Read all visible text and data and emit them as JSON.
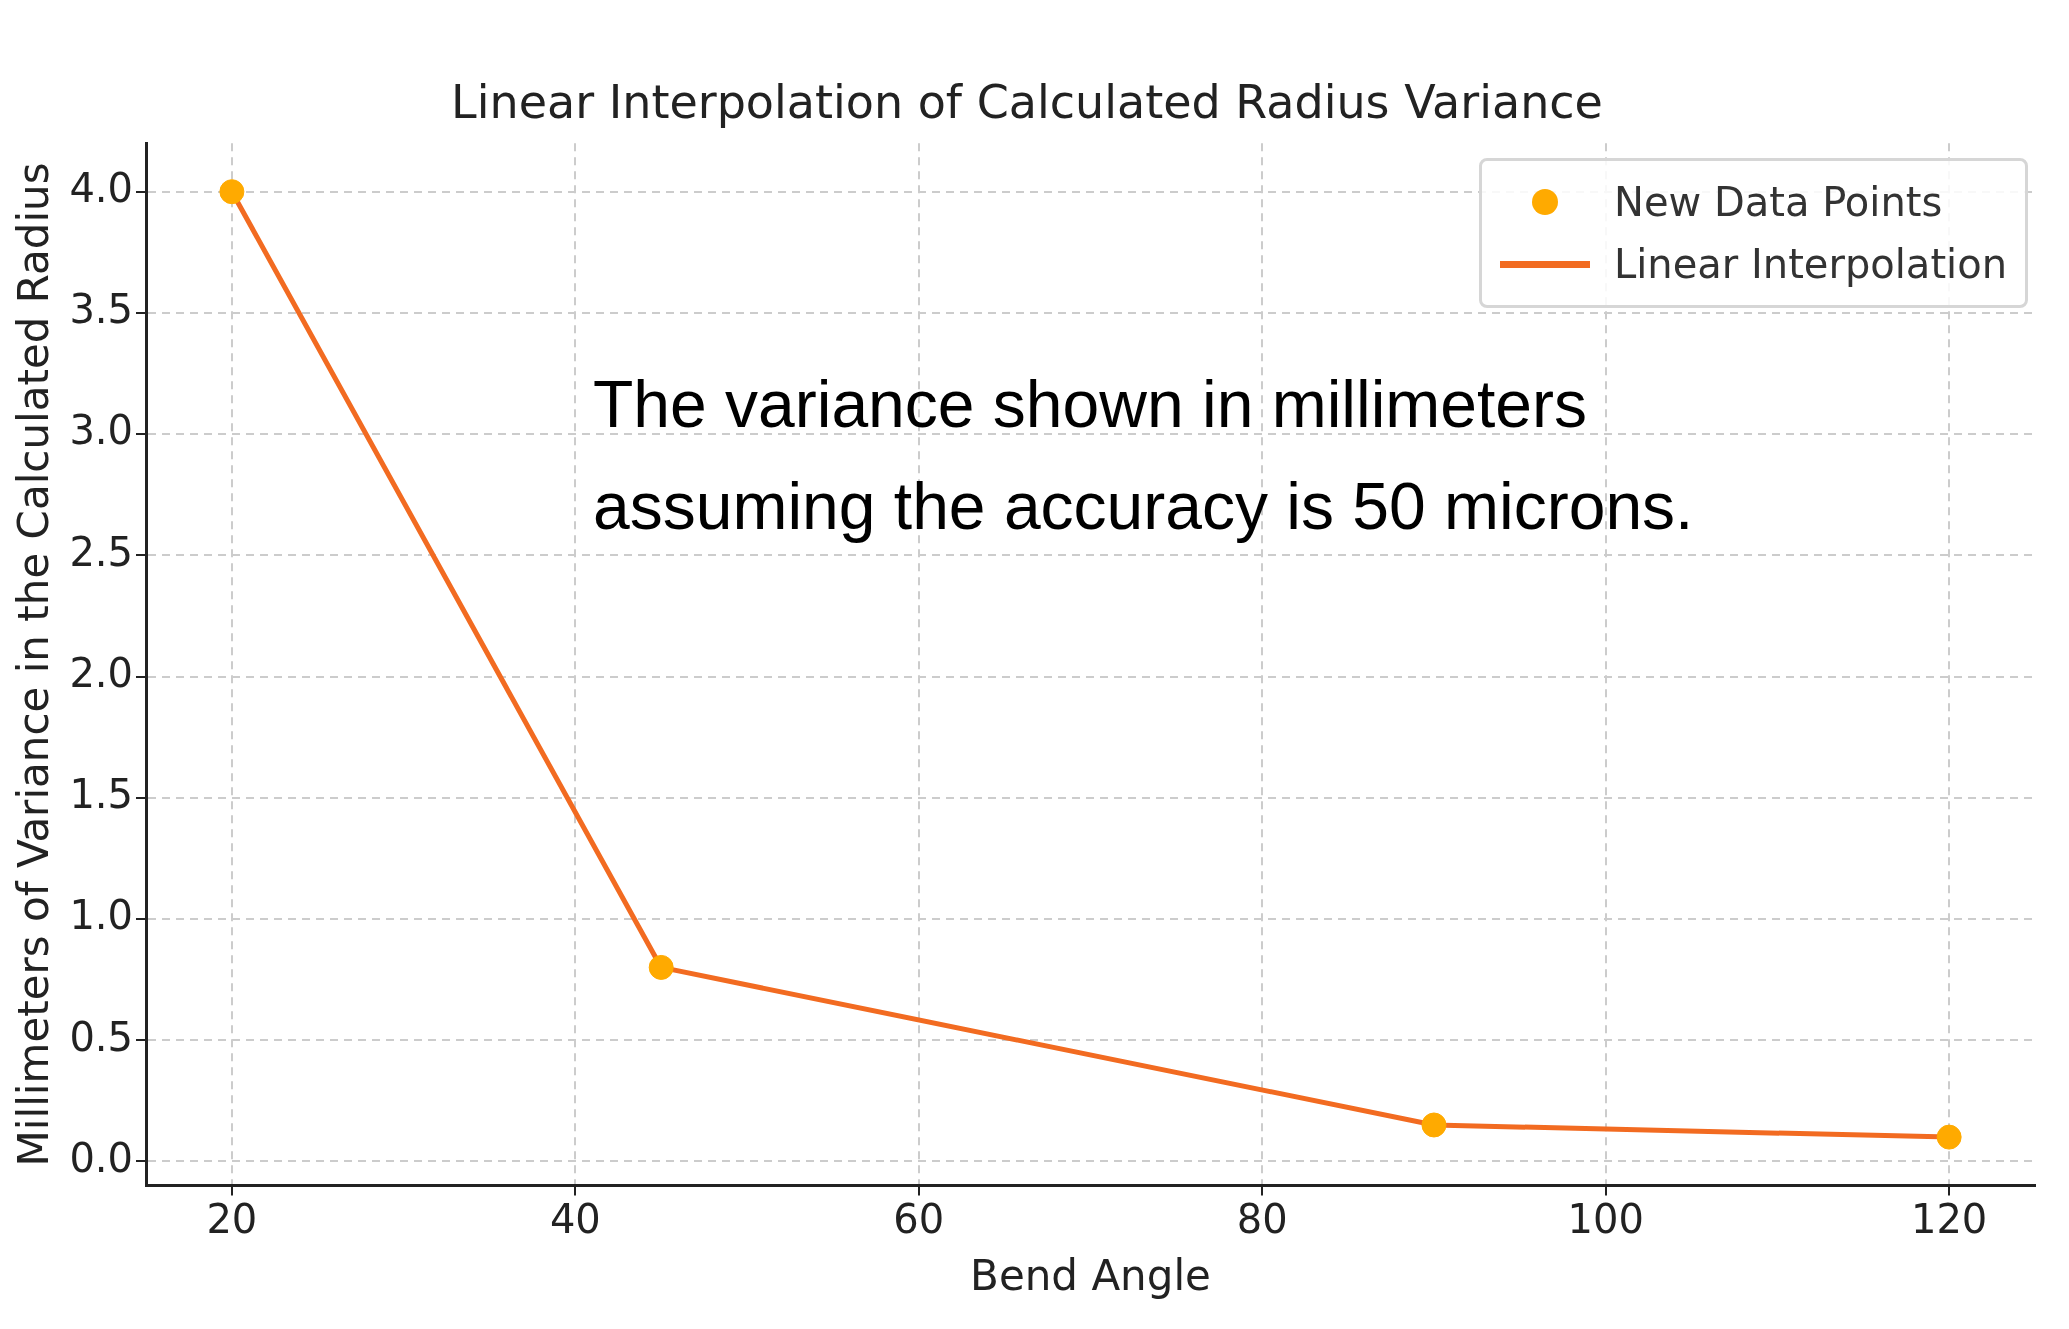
{
  "chart_data": {
    "type": "line",
    "title": "Linear Interpolation of Calculated Radius Variance",
    "xlabel": "Bend Angle",
    "ylabel": "Millimeters of Variance in the Calculated Radius",
    "x": [
      20,
      45,
      90,
      120
    ],
    "series": [
      {
        "name": "New Data Points",
        "type": "scatter",
        "color": "#ffaa00",
        "values": [
          4.0,
          0.8,
          0.15,
          0.1
        ]
      },
      {
        "name": "Linear Interpolation",
        "type": "line",
        "color": "#f26b21",
        "values": [
          4.0,
          0.8,
          0.15,
          0.1
        ]
      }
    ],
    "xlim": [
      15,
      125
    ],
    "xticks": [
      20,
      40,
      60,
      80,
      100,
      120
    ],
    "ylim": [
      -0.1,
      4.2
    ],
    "yticks": [
      {
        "value": 0,
        "label": "0.0"
      },
      0.5,
      {
        "value": 1,
        "label": "1.0"
      },
      1.5,
      {
        "value": 2,
        "label": "2.0"
      },
      2.5,
      {
        "value": 3,
        "label": "3.0"
      },
      3.5,
      {
        "value": 4,
        "label": "4.0"
      }
    ],
    "grid": true,
    "legend": "top right",
    "annotations": [
      "The variance shown in millimeters assuming the accuracy is 50 microns."
    ]
  }
}
